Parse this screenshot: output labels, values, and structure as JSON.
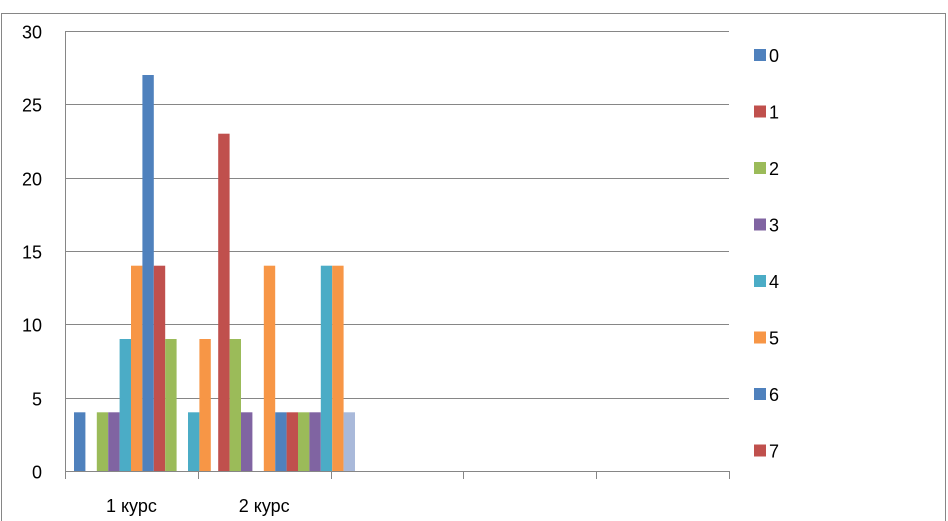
{
  "chart_data": {
    "type": "bar",
    "categories": [
      "1 курс",
      "2 курс",
      "",
      "",
      ""
    ],
    "ylim": [
      0,
      30
    ],
    "yticks": [
      0,
      5,
      10,
      15,
      20,
      25,
      30
    ],
    "grid": true,
    "legend_position": "right",
    "series": [
      {
        "name": "0",
        "color": "#4F81BD",
        "values": [
          4,
          0,
          0,
          0,
          0
        ]
      },
      {
        "name": "1",
        "color": "#C0504D",
        "values": [
          0,
          23,
          0,
          0,
          0
        ]
      },
      {
        "name": "2",
        "color": "#9BBB59",
        "values": [
          4,
          9,
          0,
          0,
          0
        ]
      },
      {
        "name": "3",
        "color": "#8064A2",
        "values": [
          4,
          4,
          0,
          0,
          0
        ]
      },
      {
        "name": "4",
        "color": "#4BACC6",
        "values": [
          9,
          0,
          0,
          0,
          0
        ]
      },
      {
        "name": "5",
        "color": "#F79646",
        "values": [
          14,
          14,
          0,
          0,
          0
        ]
      },
      {
        "name": "6",
        "color": "#4F81BD",
        "values": [
          27,
          4,
          0,
          0,
          0
        ]
      },
      {
        "name": "7",
        "color": "#C0504D",
        "values": [
          14,
          4,
          0,
          0,
          0
        ]
      },
      {
        "name": "",
        "color": "#9BBB59",
        "values": [
          9,
          4,
          0,
          0,
          0
        ]
      },
      {
        "name": "",
        "color": "#8064A2",
        "values": [
          0,
          4,
          0,
          0,
          0
        ]
      },
      {
        "name": "",
        "color": "#4BACC6",
        "values": [
          4,
          14,
          0,
          0,
          0
        ]
      },
      {
        "name": "",
        "color": "#F79646",
        "values": [
          9,
          14,
          0,
          0,
          0
        ]
      },
      {
        "name": "",
        "color": "#A9B9DA",
        "values": [
          0,
          4,
          0,
          0,
          0
        ]
      }
    ]
  }
}
